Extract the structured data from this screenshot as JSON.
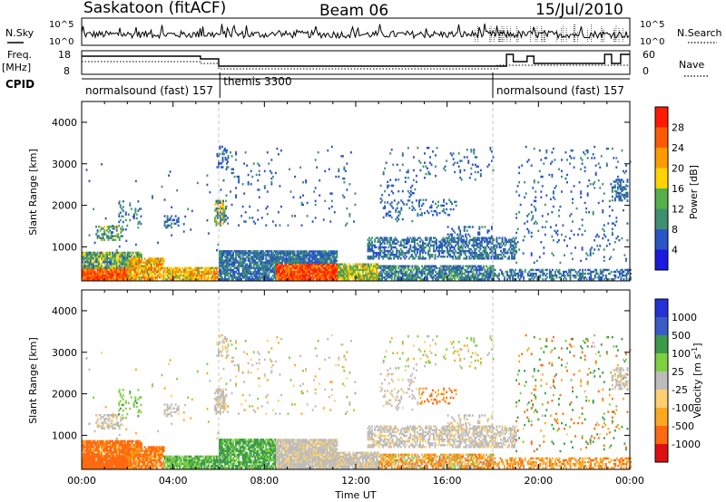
{
  "header": {
    "radar": "Saskatoon (fitACF)",
    "beam": "Beam 06",
    "date": "15/Jul/2010"
  },
  "top_panels": {
    "nsky_label": "N.Sky",
    "nsky_ticks": [
      "10^5",
      "10^0"
    ],
    "nsearch_label": "N.Search",
    "nsearch_ticks": [
      "10^5",
      "10^0"
    ],
    "freq_label": "Freq.",
    "freq_unit": "[MHz]",
    "freq_ticks": [
      "18",
      "8"
    ],
    "nave_label": "Nave",
    "nave_ticks": [
      "60",
      "0"
    ],
    "cpid_label": "CPID",
    "cpid_segments": [
      {
        "name": "normalsound (fast)",
        "code": "157",
        "start_h": 0.0,
        "end_h": 6.05
      },
      {
        "name": "themis",
        "code": "3300",
        "start_h": 6.05,
        "end_h": 18.0
      },
      {
        "name": "normalsound (fast)",
        "code": "157",
        "start_h": 18.0,
        "end_h": 24.0
      }
    ]
  },
  "colors": {
    "power": [
      "#1a1ae0",
      "#2a55c8",
      "#3f9070",
      "#55b04a",
      "#ffd400",
      "#ff9a00",
      "#ff5a00",
      "#ff1a00"
    ],
    "velocity": [
      "#e01010",
      "#ff6a10",
      "#ffa820",
      "#ffd070",
      "#bcbcbc",
      "#7ed040",
      "#3c9a4c",
      "#3a5cc8",
      "#2432d8"
    ]
  },
  "chart_data": [
    {
      "type": "heatmap",
      "name": "power",
      "ylabel": "Slant Range [km]",
      "ylim": [
        180,
        4500
      ],
      "yticks": [
        1000,
        2000,
        3000,
        4000
      ],
      "xlim": [
        0,
        24
      ],
      "colorbar_label": "Power [dB]",
      "colorbar_ticks": [
        "4",
        "8",
        "12",
        "16",
        "20",
        "24",
        "28"
      ],
      "colorbar_range": [
        0,
        32
      ]
    },
    {
      "type": "heatmap",
      "name": "velocity",
      "ylabel": "Slant Range [km]",
      "ylim": [
        180,
        4500
      ],
      "yticks": [
        1000,
        2000,
        3000,
        4000
      ],
      "xlim": [
        0,
        24
      ],
      "xlabel": "Time UT",
      "xticks": [
        "00:00",
        "04:00",
        "08:00",
        "12:00",
        "16:00",
        "20:00",
        "00:00"
      ],
      "colorbar_label": "Velocity [m s^-1]",
      "colorbar_ticks": [
        "1000",
        "500",
        "100",
        "25",
        "-25",
        "-100",
        "-500",
        "-1000"
      ]
    }
  ],
  "scatter_regions": [
    {
      "t0": 0.0,
      "t1": 2.0,
      "r0": 200,
      "r1": 480,
      "p": 0.97,
      "pw": [
        22,
        30
      ],
      "vel": [
        -500,
        -100
      ]
    },
    {
      "t0": 0.0,
      "t1": 2.6,
      "r0": 480,
      "r1": 880,
      "p": 0.9,
      "pw": [
        6,
        20
      ],
      "vel": [
        -300,
        -40
      ]
    },
    {
      "t0": 2.0,
      "t1": 3.6,
      "r0": 200,
      "r1": 700,
      "p": 0.8,
      "pw": [
        14,
        28
      ],
      "vel": [
        -200,
        -30
      ]
    },
    {
      "t0": 3.6,
      "t1": 6.0,
      "r0": 200,
      "r1": 500,
      "p": 0.85,
      "pw": [
        14,
        26
      ],
      "vel": [
        50,
        150
      ]
    },
    {
      "t0": 6.0,
      "t1": 8.5,
      "r0": 200,
      "r1": 880,
      "p": 0.85,
      "pw": [
        4,
        12
      ],
      "vel": [
        60,
        180
      ]
    },
    {
      "t0": 8.5,
      "t1": 11.2,
      "r0": 200,
      "r1": 600,
      "p": 0.95,
      "pw": [
        22,
        32
      ],
      "vel": [
        -20,
        20
      ]
    },
    {
      "t0": 8.5,
      "t1": 11.2,
      "r0": 600,
      "r1": 880,
      "p": 0.9,
      "pw": [
        4,
        12
      ],
      "vel": [
        -20,
        20
      ]
    },
    {
      "t0": 11.2,
      "t1": 13.0,
      "r0": 200,
      "r1": 600,
      "p": 0.85,
      "pw": [
        10,
        22
      ],
      "vel": [
        -20,
        20
      ]
    },
    {
      "t0": 13.0,
      "t1": 18.0,
      "r0": 200,
      "r1": 550,
      "p": 0.75,
      "pw": [
        4,
        14
      ],
      "vel": [
        -150,
        40
      ]
    },
    {
      "t0": 12.5,
      "t1": 19.0,
      "r0": 700,
      "r1": 1200,
      "p": 0.55,
      "pw": [
        4,
        12
      ],
      "vel": [
        -20,
        20
      ]
    },
    {
      "t0": 18.0,
      "t1": 24.0,
      "r0": 200,
      "r1": 450,
      "p": 0.45,
      "pw": [
        4,
        12
      ],
      "vel": [
        -140,
        -30
      ]
    },
    {
      "t0": 0.6,
      "t1": 1.8,
      "r0": 1150,
      "r1": 1500,
      "p": 0.5,
      "pw": [
        6,
        18
      ],
      "vel": [
        -20,
        20
      ]
    },
    {
      "t0": 1.6,
      "t1": 2.6,
      "r0": 1400,
      "r1": 2100,
      "p": 0.18,
      "pw": [
        4,
        14
      ],
      "vel": [
        30,
        120
      ]
    },
    {
      "t0": 3.6,
      "t1": 4.2,
      "r0": 1450,
      "r1": 1750,
      "p": 0.4,
      "pw": [
        4,
        10
      ],
      "vel": [
        -20,
        20
      ]
    },
    {
      "t0": 5.8,
      "t1": 6.3,
      "r0": 1500,
      "r1": 2100,
      "p": 0.55,
      "pw": [
        4,
        22
      ],
      "vel": [
        -20,
        20
      ]
    },
    {
      "t0": 5.9,
      "t1": 6.4,
      "r0": 2900,
      "r1": 3400,
      "p": 0.35,
      "pw": [
        4,
        10
      ],
      "vel": [
        -20,
        20
      ]
    },
    {
      "t0": 6.0,
      "t1": 12.0,
      "r0": 1500,
      "r1": 3400,
      "p": 0.035,
      "pw": [
        4,
        10
      ],
      "vel": [
        -40,
        40
      ]
    },
    {
      "t0": 13.0,
      "t1": 14.8,
      "r0": 1600,
      "r1": 2600,
      "p": 0.12,
      "pw": [
        4,
        10
      ],
      "vel": [
        -20,
        20
      ]
    },
    {
      "t0": 13.0,
      "t1": 18.0,
      "r0": 2600,
      "r1": 3400,
      "p": 0.06,
      "pw": [
        4,
        10
      ],
      "vel": [
        -60,
        60
      ]
    },
    {
      "t0": 14.8,
      "t1": 16.4,
      "r0": 1750,
      "r1": 2150,
      "p": 0.18,
      "pw": [
        4,
        10
      ],
      "vel": [
        -200,
        -40
      ]
    },
    {
      "t0": 16.0,
      "t1": 18.0,
      "r0": 1100,
      "r1": 1500,
      "p": 0.2,
      "pw": [
        4,
        10
      ],
      "vel": [
        -20,
        20
      ]
    },
    {
      "t0": 19.0,
      "t1": 24.0,
      "r0": 600,
      "r1": 3400,
      "p": 0.05,
      "pw": [
        4,
        10
      ],
      "vel": [
        -300,
        300
      ]
    },
    {
      "t0": 23.2,
      "t1": 23.9,
      "r0": 2100,
      "r1": 2600,
      "p": 0.45,
      "pw": [
        4,
        10
      ],
      "vel": [
        -20,
        20
      ]
    },
    {
      "t0": 0.0,
      "t1": 6.0,
      "r0": 900,
      "r1": 3000,
      "p": 0.01,
      "pw": [
        4,
        10
      ],
      "vel": [
        -80,
        80
      ]
    }
  ]
}
